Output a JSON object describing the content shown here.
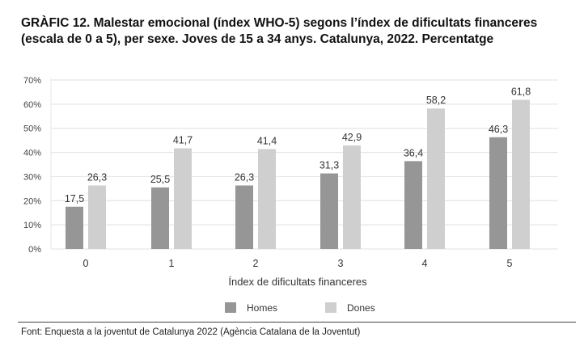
{
  "chart_data": {
    "type": "bar",
    "title": "GRÀFIC 12. Malestar emocional (índex WHO-5) segons l’índex de dificultats financeres (escala de 0 a 5), per sexe. Joves de 15 a 34 anys. Catalunya, 2022. Percentatge",
    "categories": [
      "0",
      "1",
      "2",
      "3",
      "4",
      "5"
    ],
    "series": [
      {
        "name": "Homes",
        "color": "#969696",
        "values": [
          17.5,
          25.5,
          26.3,
          31.3,
          36.4,
          46.3
        ],
        "labels": [
          "17,5",
          "25,5",
          "26,3",
          "31,3",
          "36,4",
          "46,3"
        ]
      },
      {
        "name": "Dones",
        "color": "#cfcfcf",
        "values": [
          26.3,
          41.7,
          41.4,
          42.9,
          58.2,
          61.8
        ],
        "labels": [
          "26,3",
          "41,7",
          "41,4",
          "42,9",
          "58,2",
          "61,8"
        ]
      }
    ],
    "xlabel": "Índex de dificultats financeres",
    "ylabel": "",
    "ylim": [
      0,
      70
    ],
    "yticks": [
      "0%",
      "10%",
      "20%",
      "30%",
      "40%",
      "50%",
      "60%",
      "70%"
    ],
    "grid": true,
    "legend_position": "bottom-center"
  },
  "source": "Font: Enquesta a la joventut de Catalunya 2022 (Agència Catalana de la Joventut)"
}
